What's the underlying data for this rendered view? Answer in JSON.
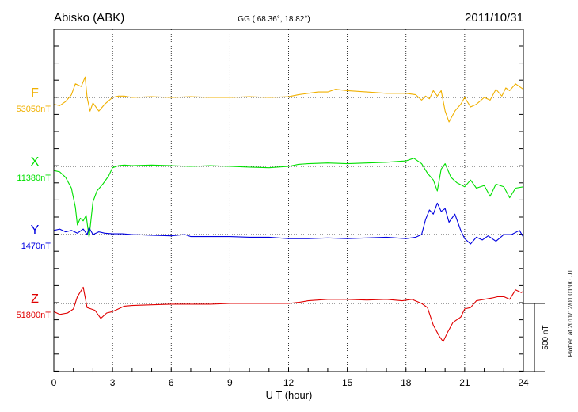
{
  "header": {
    "station": "Abisko (ABK)",
    "coords": "GG ( 68.36°,  18.82°)",
    "date": "2011/10/31"
  },
  "footer": {
    "xlabel": "U T (hour)",
    "plotted": "Plotted at 2011/12/01 01:00 UT",
    "scale_label": "500 nT"
  },
  "colors": {
    "F": "#f0b000",
    "X": "#00e000",
    "Y": "#0000e0",
    "Z": "#e00000"
  },
  "chart_data": {
    "type": "line",
    "xlabel": "U T (hour)",
    "xlim": [
      0,
      24
    ],
    "xticks": [
      0,
      3,
      6,
      9,
      12,
      15,
      18,
      21,
      24
    ],
    "grid": "dotted vertical every 3 h + dotted baseline per component",
    "scale_bar_nT": 500,
    "series": [
      {
        "name": "F",
        "baseline_label": "53050nT",
        "baseline": 53050,
        "x": [
          0,
          0.3,
          0.6,
          0.9,
          1.1,
          1.4,
          1.6,
          1.7,
          1.85,
          2.0,
          2.3,
          2.6,
          3.0,
          3.3,
          3.6,
          4.0,
          5.0,
          6.0,
          7.0,
          8.0,
          9.0,
          10.0,
          11.0,
          12.0,
          12.5,
          13.0,
          13.5,
          14.0,
          14.4,
          15.0,
          16.0,
          17.0,
          18.0,
          18.5,
          18.8,
          19.0,
          19.2,
          19.4,
          19.6,
          19.8,
          20.0,
          20.2,
          20.5,
          20.8,
          21.0,
          21.3,
          21.6,
          22.0,
          22.3,
          22.6,
          22.9,
          23.1,
          23.3,
          23.6,
          24.0
        ],
        "y": [
          53000,
          52990,
          53020,
          53070,
          53150,
          53130,
          53200,
          53050,
          52950,
          53010,
          52950,
          53000,
          53050,
          53060,
          53060,
          53050,
          53055,
          53050,
          53055,
          53050,
          53050,
          53055,
          53050,
          53055,
          53070,
          53080,
          53090,
          53090,
          53110,
          53100,
          53090,
          53080,
          53080,
          53070,
          53030,
          53060,
          53040,
          53100,
          53060,
          53100,
          52950,
          52870,
          52950,
          53000,
          53050,
          52980,
          53000,
          53050,
          53030,
          53110,
          53060,
          53120,
          53100,
          53150,
          53110
        ]
      },
      {
        "name": "X",
        "baseline_label": "11380nT",
        "baseline": 11380,
        "x": [
          0,
          0.3,
          0.6,
          0.9,
          1.1,
          1.2,
          1.35,
          1.5,
          1.65,
          1.8,
          2.0,
          2.2,
          2.5,
          2.8,
          3.0,
          3.3,
          3.6,
          4.0,
          5.0,
          6.0,
          7.0,
          8.0,
          9.0,
          10.0,
          11.0,
          12.0,
          12.5,
          13.0,
          14.0,
          15.0,
          16.0,
          17.0,
          18.0,
          18.4,
          18.8,
          19.1,
          19.4,
          19.6,
          19.8,
          20.0,
          20.3,
          20.6,
          21.0,
          21.3,
          21.6,
          22.0,
          22.3,
          22.6,
          23.0,
          23.3,
          23.6,
          24.0
        ],
        "y": [
          11350,
          11340,
          11300,
          11220,
          11080,
          10950,
          11000,
          10980,
          11020,
          10860,
          11120,
          11200,
          11250,
          11310,
          11370,
          11385,
          11390,
          11385,
          11390,
          11385,
          11380,
          11385,
          11380,
          11375,
          11370,
          11380,
          11395,
          11400,
          11405,
          11400,
          11405,
          11410,
          11420,
          11440,
          11400,
          11330,
          11280,
          11200,
          11360,
          11400,
          11300,
          11260,
          11230,
          11280,
          11220,
          11240,
          11160,
          11250,
          11230,
          11150,
          11220,
          11230
        ]
      },
      {
        "name": "Y",
        "baseline_label": "1470nT",
        "baseline": 1470,
        "x": [
          0,
          0.3,
          0.6,
          0.9,
          1.2,
          1.5,
          1.7,
          1.8,
          2.0,
          2.3,
          2.6,
          3.0,
          3.5,
          4.0,
          5.0,
          6.0,
          6.7,
          7.0,
          8.0,
          9.0,
          10.0,
          11.0,
          12.0,
          12.5,
          13.0,
          14.0,
          15.0,
          16.0,
          17.0,
          18.0,
          18.5,
          18.8,
          19.0,
          19.2,
          19.4,
          19.6,
          19.8,
          20.0,
          20.2,
          20.5,
          20.8,
          21.0,
          21.3,
          21.6,
          21.9,
          22.2,
          22.6,
          23.0,
          23.4,
          23.8,
          24.0
        ],
        "y": [
          1500,
          1510,
          1490,
          1500,
          1480,
          1510,
          1470,
          1520,
          1470,
          1490,
          1480,
          1475,
          1475,
          1470,
          1465,
          1460,
          1470,
          1455,
          1455,
          1455,
          1450,
          1450,
          1440,
          1440,
          1440,
          1445,
          1440,
          1445,
          1450,
          1440,
          1450,
          1470,
          1580,
          1650,
          1620,
          1700,
          1640,
          1660,
          1560,
          1620,
          1500,
          1440,
          1400,
          1450,
          1430,
          1460,
          1420,
          1470,
          1470,
          1500,
          1450
        ]
      },
      {
        "name": "Z",
        "baseline_label": "51800nT",
        "baseline": 51800,
        "x": [
          0,
          0.3,
          0.7,
          1.0,
          1.2,
          1.5,
          1.7,
          1.9,
          2.1,
          2.4,
          2.7,
          3.0,
          3.3,
          3.6,
          4.0,
          5.0,
          6.0,
          7.0,
          8.0,
          9.0,
          10.0,
          11.0,
          12.0,
          12.6,
          13.0,
          14.0,
          15.0,
          16.0,
          17.0,
          17.8,
          18.3,
          18.8,
          19.1,
          19.4,
          19.7,
          19.9,
          20.1,
          20.4,
          20.8,
          21.0,
          21.3,
          21.6,
          22.0,
          22.4,
          22.7,
          23.0,
          23.3,
          23.6,
          23.9,
          24.0
        ],
        "y": [
          51740,
          51720,
          51730,
          51760,
          51850,
          51920,
          51770,
          51760,
          51750,
          51690,
          51730,
          51740,
          51760,
          51780,
          51785,
          51790,
          51795,
          51795,
          51795,
          51800,
          51800,
          51800,
          51800,
          51810,
          51820,
          51830,
          51830,
          51825,
          51830,
          51820,
          51830,
          51800,
          51770,
          51640,
          51560,
          51520,
          51580,
          51660,
          51700,
          51760,
          51770,
          51820,
          51830,
          51840,
          51850,
          51850,
          51830,
          51900,
          51880,
          51890
        ]
      }
    ]
  }
}
